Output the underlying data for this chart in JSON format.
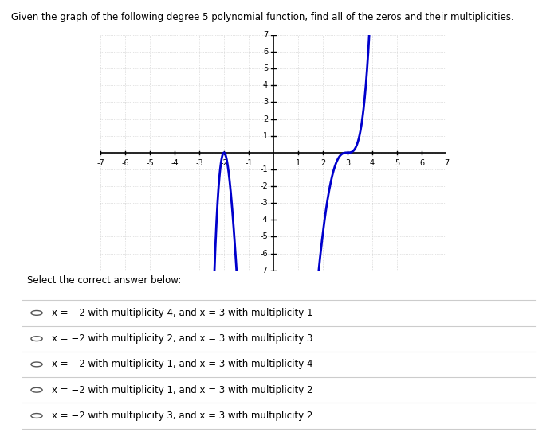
{
  "title": "Given the graph of the following degree 5 polynomial function, find all of the zeros and their multiplicities.",
  "xlim": [
    -7,
    7
  ],
  "ylim": [
    -7,
    7
  ],
  "xticks": [
    -7,
    -6,
    -5,
    -4,
    -3,
    -2,
    -1,
    1,
    2,
    3,
    4,
    5,
    6,
    7
  ],
  "yticks": [
    -7,
    -6,
    -5,
    -4,
    -3,
    -2,
    -1,
    1,
    2,
    3,
    4,
    5,
    6,
    7
  ],
  "curve_color": "#0000CC",
  "background_color": "#ffffff",
  "grid_color": "#c8c8c8",
  "poly_a": 0.3,
  "answer_options": [
    "x = −2 with multiplicity 4, and x = 3 with multiplicity 1",
    "x = −2 with multiplicity 2, and x = 3 with multiplicity 3",
    "x = −2 with multiplicity 1, and x = 3 with multiplicity 4",
    "x = −2 with multiplicity 1, and x = 3 with multiplicity 2",
    "x = −2 with multiplicity 3, and x = 3 with multiplicity 2"
  ],
  "select_text": "Select the correct answer below:"
}
